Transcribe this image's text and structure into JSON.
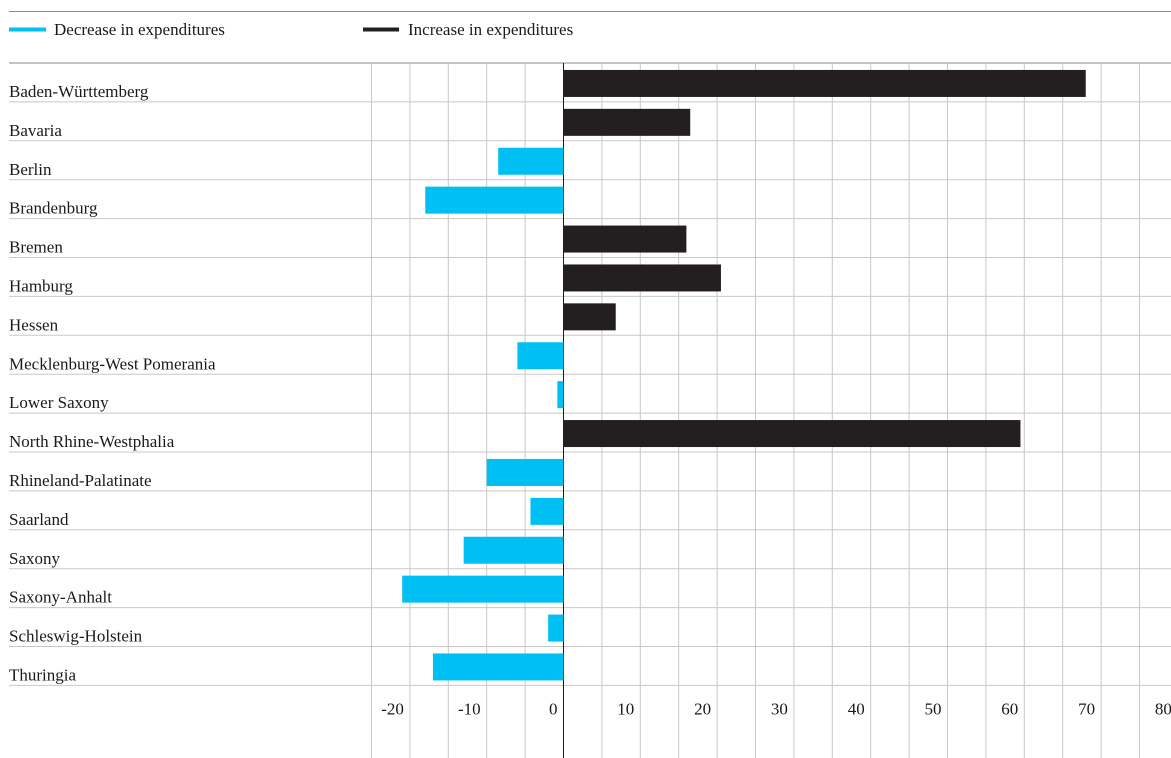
{
  "chart_data": {
    "type": "bar",
    "orientation": "horizontal",
    "title": "",
    "xlabel": "",
    "ylabel": "",
    "xlim": [
      -30,
      80
    ],
    "xticks": [
      -20,
      -10,
      0,
      10,
      20,
      30,
      40,
      50,
      60,
      70,
      80
    ],
    "grid": true,
    "legend_position": "top-left",
    "legend": [
      {
        "label": "Decrease in expenditures",
        "color": "#00bff3"
      },
      {
        "label": "Increase in expenditures",
        "color": "#231f20"
      }
    ],
    "colors": {
      "positive": "#231f20",
      "negative": "#00bff3"
    },
    "categories": [
      "Baden-Württemberg",
      "Bavaria",
      "Berlin",
      "Brandenburg",
      "Bremen",
      "Hamburg",
      "Hessen",
      "Mecklenburg-West Pomerania",
      "Lower Saxony",
      "North Rhine-Westphalia",
      "Rhineland-Palatinate",
      "Saarland",
      "Saxony",
      "Saxony-Anhalt",
      "Schleswig-Holstein",
      "Thuringia"
    ],
    "values": [
      68,
      16.5,
      -8.5,
      -18,
      16,
      20.5,
      6.8,
      -6,
      -0.8,
      59.5,
      -10,
      -4.3,
      -13,
      -21,
      -2,
      -17
    ]
  }
}
